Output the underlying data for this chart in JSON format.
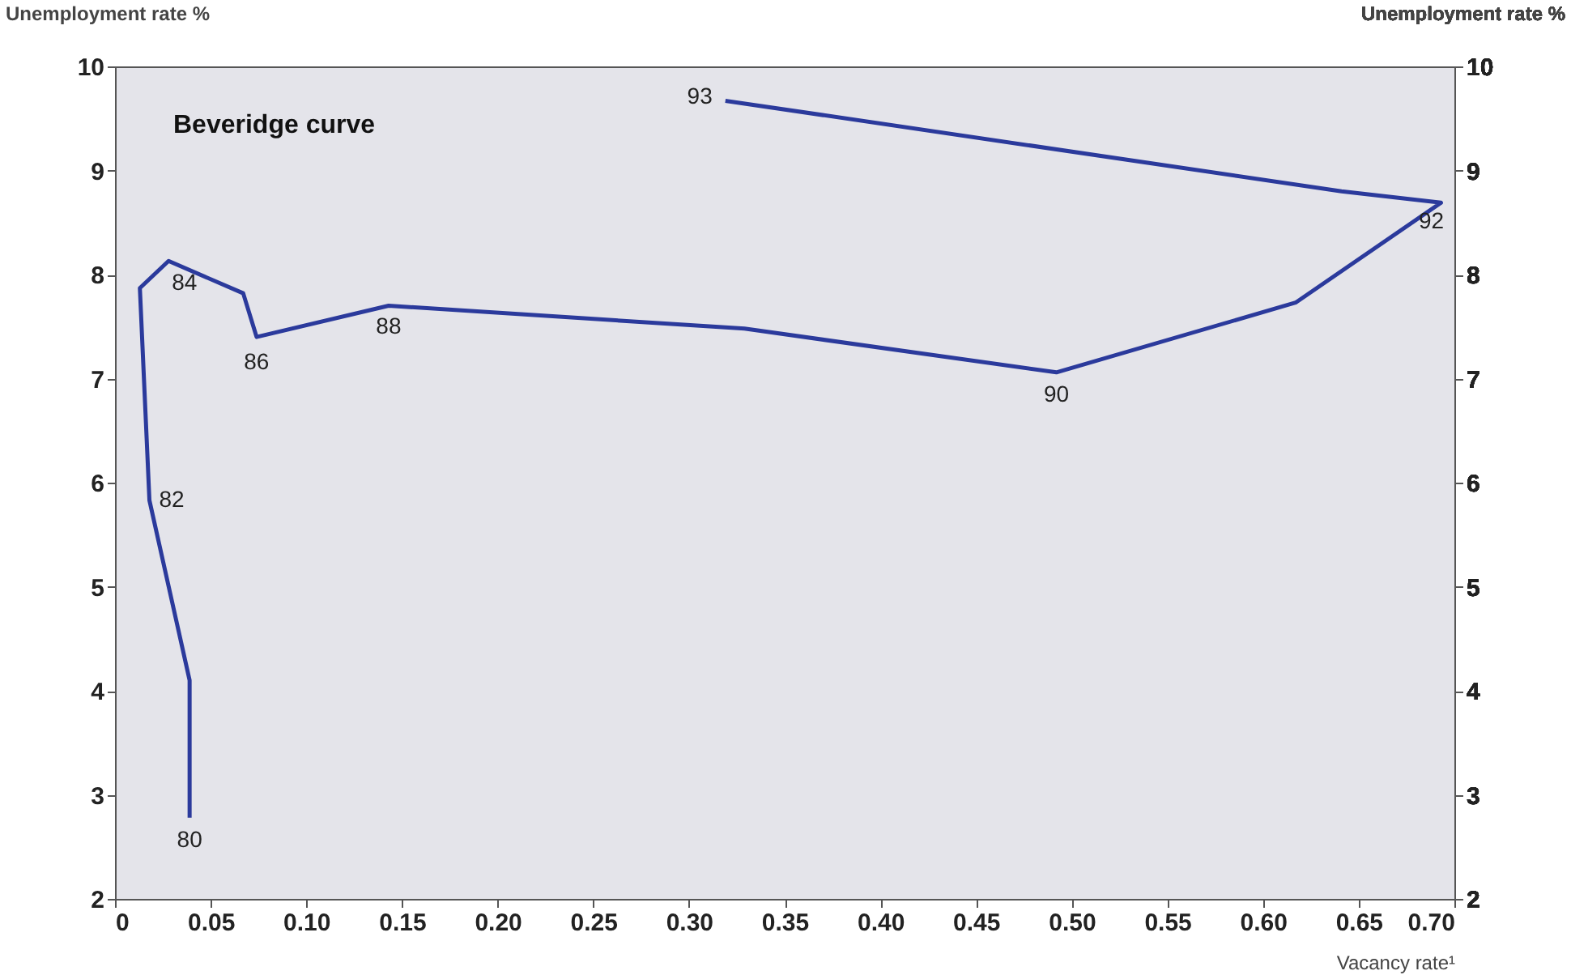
{
  "chart_data": {
    "type": "line",
    "title": "Beveridge curve",
    "xlabel": "Vacancy rate¹",
    "ylabel": "Unemployment rate %",
    "y2label": "Unemployment rate %",
    "x": [
      0.039,
      0.039,
      0.018,
      0.013,
      0.028,
      0.067,
      0.074,
      0.143,
      0.329,
      0.492,
      0.617,
      0.693,
      0.641,
      0.319
    ],
    "series": [
      {
        "color": "#2b3a9c",
        "values": [
          2.78,
          4.1,
          5.83,
          7.87,
          8.13,
          7.82,
          7.4,
          7.7,
          7.48,
          7.06,
          7.73,
          8.69,
          8.8,
          9.67
        ]
      }
    ],
    "xlim": [
      0,
      0.7
    ],
    "xticks": [
      {
        "value": 0,
        "label": "0"
      },
      {
        "value": 0.05,
        "label": "0.05"
      },
      {
        "value": 0.1,
        "label": "0.10"
      },
      {
        "value": 0.15,
        "label": "0.15"
      },
      {
        "value": 0.2,
        "label": "0.20"
      },
      {
        "value": 0.25,
        "label": "0.25"
      },
      {
        "value": 0.3,
        "label": "0.30"
      },
      {
        "value": 0.35,
        "label": "0.35"
      },
      {
        "value": 0.4,
        "label": "0.40"
      },
      {
        "value": 0.45,
        "label": "0.45"
      },
      {
        "value": 0.5,
        "label": "0.50"
      },
      {
        "value": 0.55,
        "label": "0.55"
      },
      {
        "value": 0.6,
        "label": "0.60"
      },
      {
        "value": 0.65,
        "label": "0.65"
      },
      {
        "value": 0.7,
        "label": "0.70"
      }
    ],
    "ylim": [
      2,
      10
    ],
    "yticks": [
      2,
      3,
      4,
      5,
      6,
      7,
      8,
      9,
      10
    ],
    "y2lim": [
      2,
      10
    ],
    "y2ticks": [
      2,
      3,
      4,
      5,
      6,
      7,
      8,
      9,
      10
    ],
    "annotations": [
      {
        "text": "80",
        "x": 0.039,
        "y": 2.78
      },
      {
        "text": "82",
        "x": 0.018,
        "y": 5.83
      },
      {
        "text": "84",
        "x": 0.028,
        "y": 8.13
      },
      {
        "text": "86",
        "x": 0.074,
        "y": 7.4
      },
      {
        "text": "88",
        "x": 0.143,
        "y": 7.7
      },
      {
        "text": "90",
        "x": 0.492,
        "y": 7.06
      },
      {
        "text": "92",
        "x": 0.693,
        "y": 8.69
      },
      {
        "text": "93",
        "x": 0.319,
        "y": 9.67
      }
    ],
    "grid": false,
    "marker": "none",
    "line_style": "solid"
  }
}
